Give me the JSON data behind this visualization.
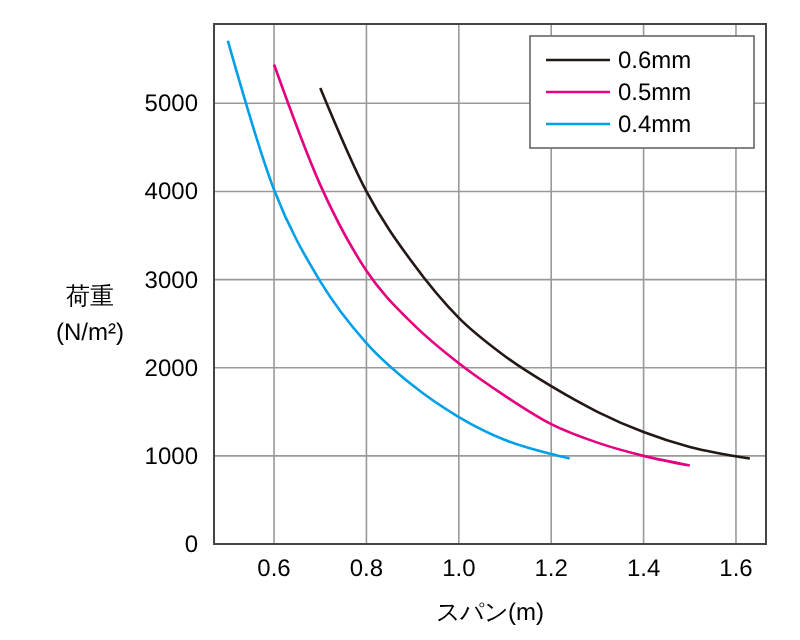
{
  "chart_data": {
    "type": "line",
    "xlabel": "スパン(m)",
    "ylabel": "荷重\n(N/m²)",
    "xlim": [
      0.47,
      1.665
    ],
    "ylim": [
      0,
      5900
    ],
    "xticks": [
      {
        "value": 0.6,
        "label": "0.6"
      },
      {
        "value": 0.8,
        "label": "0.8"
      },
      {
        "value": 1.0,
        "label": "1.0"
      },
      {
        "value": 1.2,
        "label": "1.2"
      },
      {
        "value": 1.4,
        "label": "1.4"
      },
      {
        "value": 1.6,
        "label": "1.6"
      }
    ],
    "yticks": [
      0,
      1000,
      2000,
      3000,
      4000,
      5000
    ],
    "grid": true,
    "legend": "top right",
    "line_style": "solid",
    "marker": "none",
    "series": [
      {
        "name": "0.6mm",
        "color": "#231815",
        "x": [
          0.7,
          0.8,
          0.9,
          1.0,
          1.1,
          1.2,
          1.3,
          1.4,
          1.5,
          1.63
        ],
        "values": [
          5175,
          4000,
          3190,
          2565,
          2130,
          1790,
          1500,
          1270,
          1100,
          970
        ]
      },
      {
        "name": "0.5mm",
        "color": "#e4007f",
        "x": [
          0.6,
          0.7,
          0.8,
          0.9,
          1.0,
          1.1,
          1.2,
          1.3,
          1.4,
          1.5
        ],
        "values": [
          5440,
          4075,
          3100,
          2500,
          2050,
          1680,
          1360,
          1150,
          1000,
          890
        ]
      },
      {
        "name": "0.4mm",
        "color": "#00a0e9",
        "x": [
          0.5,
          0.6,
          0.7,
          0.8,
          0.9,
          1.0,
          1.1,
          1.2,
          1.24
        ],
        "values": [
          5710,
          4020,
          2980,
          2280,
          1800,
          1440,
          1180,
          1020,
          970
        ]
      }
    ]
  }
}
